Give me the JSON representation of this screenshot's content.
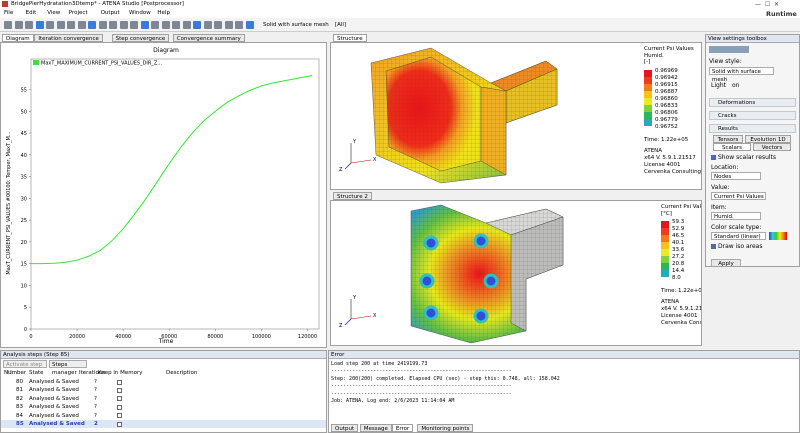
{
  "window": {
    "title": "BridgePierHydratation3Dtemp* - ATENA Studio [Postprocessor]",
    "brand": "Runtime"
  },
  "menu": [
    "File",
    "Edit",
    "View",
    "Project",
    "Output",
    "Window",
    "Help"
  ],
  "toolbar": {
    "view_style": "Solid with surface mesh",
    "filter": "[All]"
  },
  "left_tabs": [
    "Diagram",
    "Iteration convergence",
    "Step convergence",
    "Convergence summary"
  ],
  "chart_data": {
    "type": "line",
    "title": "Diagram",
    "x_label": "Time",
    "y_label": "MaxT_CURRENT_PSI_VALUES #00100: Temper, MaxT_M...",
    "x": [
      0,
      5000,
      10000,
      15000,
      20000,
      25000,
      30000,
      35000,
      40000,
      45000,
      50000,
      55000,
      60000,
      65000,
      70000,
      75000,
      80000,
      85000,
      90000,
      95000,
      100000,
      105000,
      110000,
      115000,
      120000,
      122000
    ],
    "series": [
      {
        "name": "MaxT_MAXIMUM_CURRENT_PSI_VALUES_DIR_Z...",
        "color": "#33e633",
        "values": [
          15,
          15,
          15.1,
          15.3,
          15.8,
          16.7,
          18,
          20.2,
          23,
          26.4,
          30,
          34,
          38,
          41.7,
          45,
          47.8,
          50,
          52,
          53.5,
          54.8,
          55.8,
          56.5,
          57,
          57.5,
          58,
          58.2
        ]
      }
    ],
    "xlim": [
      0,
      125000
    ],
    "ylim": [
      0,
      62
    ],
    "xticks": [
      0,
      20000,
      40000,
      60000,
      80000,
      100000,
      120000
    ],
    "yticks": [
      0,
      5,
      10,
      15,
      20,
      25,
      30,
      35,
      40,
      45,
      50,
      55
    ]
  },
  "structures": [
    {
      "tab": "Structure",
      "legend": {
        "title": "Current Psi Values",
        "item": "Humid.",
        "unit": "[-]",
        "labels": [
          "0.96969",
          "0.96942",
          "0.96915",
          "0.96887",
          "0.96860",
          "0.96833",
          "0.96806",
          "0.96779",
          "0.96752"
        ]
      },
      "time": "Time: 1.22e+05",
      "info": [
        "ATENA",
        "x64 V. 5.9.1.21517",
        "License 4001",
        "Cervenka Consulting"
      ],
      "axes": [
        "Y",
        "X",
        "Z"
      ]
    },
    {
      "tab": "Structure 2",
      "legend": {
        "title": "Current Psi Values",
        "unit": "[°C]",
        "labels": [
          "59.3",
          "52.9",
          "46.5",
          "40.1",
          "33.6",
          "27.2",
          "20.8",
          "14.4",
          "8.0"
        ]
      },
      "time": "Time: 1.22e+05",
      "info": [
        "ATENA",
        "x64 V. 5.9.1.215",
        "License 4001",
        "Cervenka Consu"
      ],
      "axes": [
        "Y",
        "X",
        "Z"
      ]
    }
  ],
  "toolbox": {
    "title": "View settings toolbox",
    "view_style_label": "View style:",
    "view_style": "Solid with surface mesh",
    "light": "Light",
    "light_state": "on",
    "sections": [
      "Deformations",
      "Cracks",
      "Results"
    ],
    "tabs": [
      "Tensors",
      "Evolution 1D"
    ],
    "subtabs": [
      "Scalars",
      "Vectors"
    ],
    "show_scalar": "Show scalar results",
    "location_label": "Location:",
    "location": "Nodes",
    "value_label": "Value:",
    "value": "Current Psi Values",
    "item_label": "Item:",
    "item": "Humid.",
    "scale_label": "Color scale type:",
    "scale": "Standard (linear)",
    "iso": "Draw iso areas",
    "apply": "Apply"
  },
  "steps": {
    "title": "Analysis steps (Step 85)",
    "buttons": [
      "Activate step 85",
      "Steps manager"
    ],
    "columns": [
      "Number",
      "State",
      "Iterations",
      "Keep in Memory",
      "Description"
    ],
    "rows": [
      [
        "80",
        "Analysed & Saved",
        "?"
      ],
      [
        "81",
        "Analysed & Saved",
        "?"
      ],
      [
        "82",
        "Analysed & Saved",
        "?"
      ],
      [
        "83",
        "Analysed & Saved",
        "?"
      ],
      [
        "84",
        "Analysed & Saved",
        "?"
      ],
      [
        "85",
        "Analysed & Saved",
        "2"
      ]
    ]
  },
  "log": {
    "title": "Error",
    "lines": [
      "Load step 200 at time 2419199.73",
      "------------------------------------------------------------",
      "Step: 200(200) completed. Elapsed CPU (sec) - step this: 0.748, all: 158.042",
      "------------------------------------------------------------",
      "------------------------------------------------------------",
      "Job: ATENA, Log end: 2/6/2023 11:14:04 AM"
    ],
    "tabs": [
      "Output",
      "Message",
      "Error",
      "Monitoring points"
    ]
  }
}
